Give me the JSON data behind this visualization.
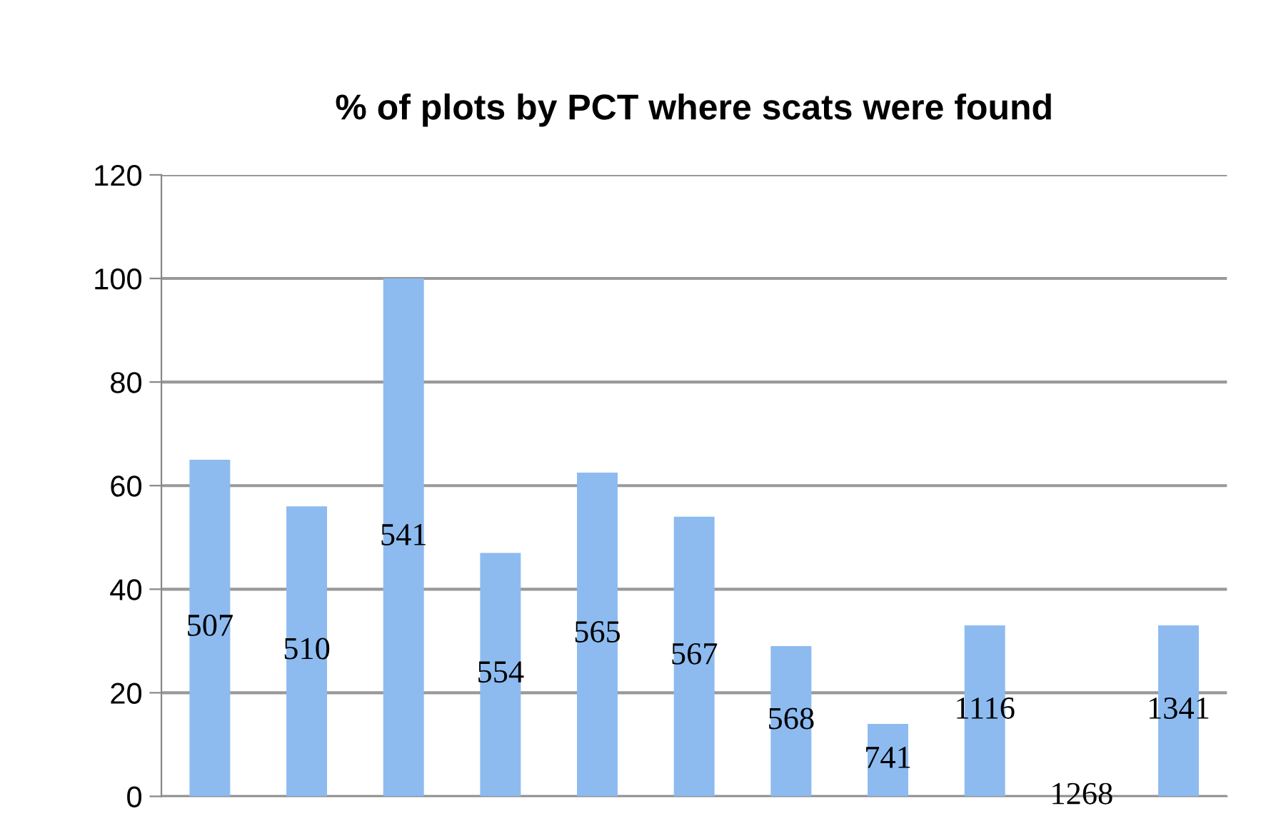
{
  "chart_data": {
    "type": "bar",
    "title": "% of plots by PCT where scats were found",
    "categories": [
      "507",
      "510",
      "541",
      "554",
      "565",
      "567",
      "568",
      "741",
      "1116",
      "1268",
      "1341"
    ],
    "values": [
      65,
      56,
      100,
      47,
      62.5,
      54,
      29,
      14,
      33,
      0,
      33
    ],
    "color": "#8dbbf0",
    "ylim": [
      0,
      120
    ],
    "yticks": [
      0,
      20,
      40,
      60,
      80,
      100,
      120
    ],
    "grid": "y"
  }
}
